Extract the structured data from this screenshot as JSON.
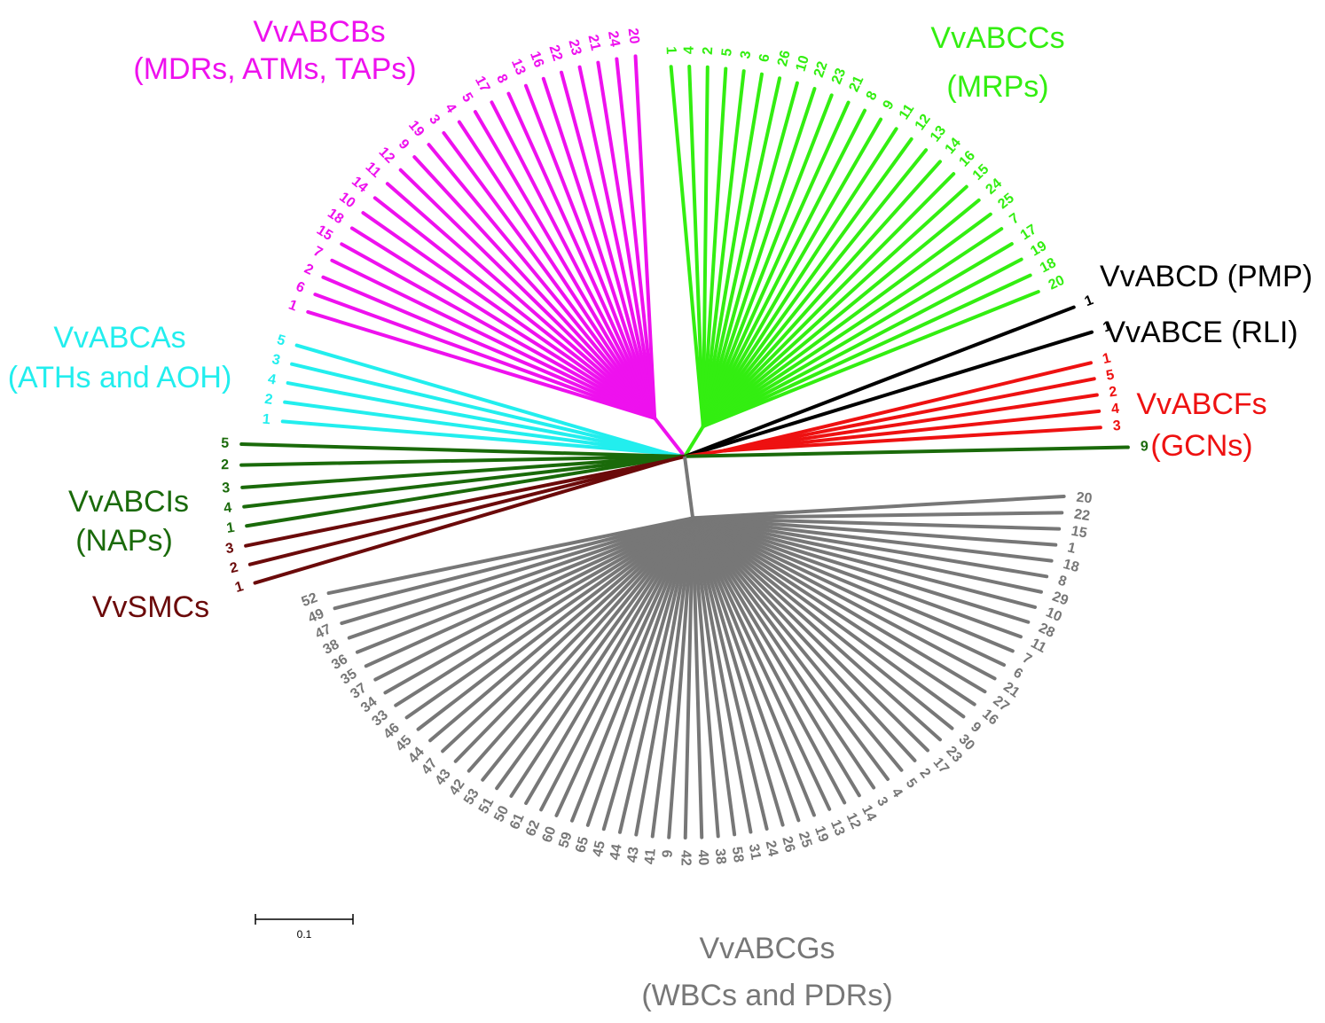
{
  "groups": [
    {
      "title": "VvABCAs",
      "subtitle": "(ATHs and AOH)",
      "leaves": [
        5,
        3,
        4,
        2,
        1
      ]
    },
    {
      "title": "VvABCBs",
      "subtitle": "(MDRs, ATMs, TAPs)",
      "leaves": [
        1,
        6,
        2,
        7,
        15,
        18,
        10,
        14,
        11,
        12,
        9,
        19,
        3,
        4,
        5,
        17,
        8,
        13,
        16,
        22,
        23,
        21,
        24,
        20
      ]
    },
    {
      "title": "VvABCCs",
      "subtitle": "(MRPs)",
      "leaves": [
        1,
        4,
        2,
        5,
        3,
        6,
        26,
        10,
        22,
        23,
        21,
        8,
        9,
        11,
        12,
        13,
        14,
        16,
        15,
        24,
        25,
        7,
        17,
        19,
        18,
        20
      ]
    },
    {
      "title": "VvABCD (PMP)",
      "leaves": [
        1
      ]
    },
    {
      "title": "VvABCE (RLI)",
      "leaves": [
        1
      ]
    },
    {
      "title": "VvABCFs",
      "subtitle": "(GCNs)",
      "leaves": [
        1,
        5,
        2,
        4,
        3
      ]
    },
    {
      "title": "VvABCIs",
      "subtitle": "(NAPs)",
      "leaves": [
        5,
        2,
        3,
        4,
        1,
        9
      ]
    },
    {
      "title": "VvSMCs",
      "leaves": [
        3,
        2,
        1
      ]
    },
    {
      "title": "VvABCGs",
      "subtitle": "(WBCs and PDRs)",
      "leaves": [
        20,
        22,
        15,
        1,
        18,
        8,
        29,
        10,
        28,
        11,
        7,
        6,
        21,
        27,
        16,
        9,
        30,
        23,
        17,
        2,
        5,
        4,
        3,
        14,
        12,
        13,
        19,
        25,
        26,
        24,
        31,
        58,
        38,
        40,
        42,
        9,
        41,
        43,
        44,
        45,
        65,
        59,
        60,
        62,
        61,
        50,
        51,
        53,
        42,
        43,
        47,
        44,
        45,
        46,
        33,
        34,
        37,
        35,
        36,
        38,
        47,
        49,
        52
      ]
    }
  ],
  "scale_bar": {
    "label": 0.1
  }
}
